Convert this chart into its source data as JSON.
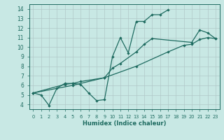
{
  "xlabel": "Humidex (Indice chaleur)",
  "xlim": [
    -0.5,
    23.5
  ],
  "ylim": [
    3.5,
    14.5
  ],
  "xticks": [
    0,
    1,
    2,
    3,
    4,
    5,
    6,
    7,
    8,
    9,
    10,
    11,
    12,
    13,
    14,
    15,
    16,
    17,
    18,
    19,
    20,
    21,
    22,
    23
  ],
  "yticks": [
    4,
    5,
    6,
    7,
    8,
    9,
    10,
    11,
    12,
    13,
    14
  ],
  "bg_color": "#c8e8e4",
  "line_color": "#1e6b60",
  "grid_color": "#b0c8c8",
  "line1_x": [
    0,
    1,
    2,
    3,
    4,
    5,
    6,
    7,
    8,
    9,
    10,
    11,
    12,
    13,
    14,
    15,
    16,
    17
  ],
  "line1_y": [
    5.2,
    5.0,
    3.9,
    5.7,
    6.2,
    6.2,
    6.1,
    5.2,
    4.4,
    4.5,
    9.0,
    11.0,
    9.4,
    12.7,
    12.7,
    13.4,
    13.4,
    13.9
  ],
  "line2_x": [
    0,
    4,
    5,
    6,
    9,
    10,
    11,
    13,
    14,
    15,
    20,
    21,
    22,
    23
  ],
  "line2_y": [
    5.2,
    6.1,
    6.2,
    6.4,
    6.8,
    7.8,
    8.3,
    9.5,
    10.3,
    10.9,
    10.5,
    11.8,
    11.5,
    10.9
  ],
  "line3_x": [
    0,
    5,
    9,
    13,
    17,
    19,
    20,
    21,
    22,
    23
  ],
  "line3_y": [
    5.2,
    6.0,
    6.8,
    8.0,
    9.5,
    10.2,
    10.3,
    10.8,
    11.0,
    10.9
  ]
}
